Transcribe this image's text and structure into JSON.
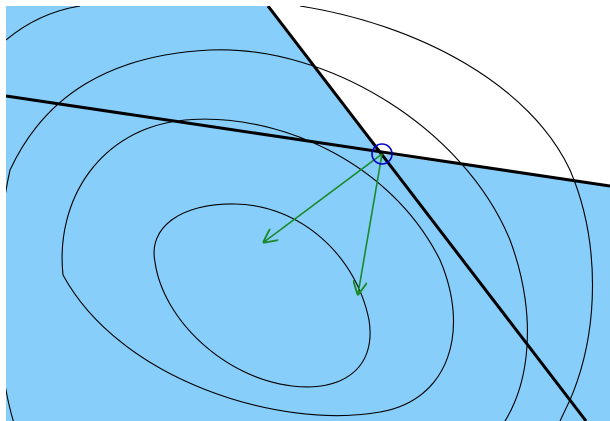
{
  "diagram": {
    "fill_color": "#87cefa",
    "background_color": "#ffffff",
    "contour_color": "#000000",
    "constraint_color": "#000000",
    "gradient_arrow_color": "#1a8a2a",
    "marker_color": "#0000cc",
    "contour_count": 4,
    "constraint_count": 2,
    "gradient_arrow_count": 2
  }
}
